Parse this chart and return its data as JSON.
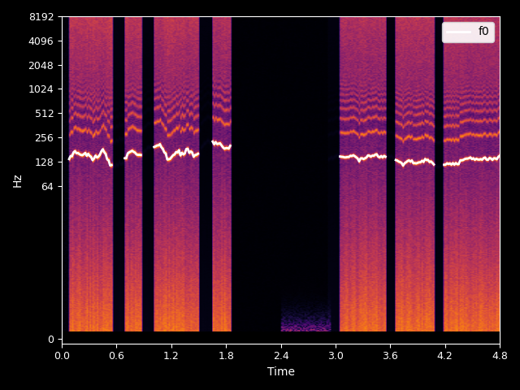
{
  "xlabel": "Time",
  "ylabel": "Hz",
  "xlim": [
    0,
    4.8
  ],
  "f_max": 8192,
  "yticks": [
    0,
    64,
    128,
    256,
    512,
    1024,
    2048,
    4096,
    8192
  ],
  "xticks": [
    0,
    0.6,
    1.2,
    1.8,
    2.4,
    3.0,
    3.6,
    4.2,
    4.8
  ],
  "colormap": "inferno",
  "bg_color": "#000000",
  "f0_color": "white",
  "f0_linewidth": 2.0,
  "legend_label": "f0",
  "t_max": 4.8,
  "n_t": 300,
  "n_f": 400,
  "figsize": [
    6.4,
    4.8
  ],
  "dpi": 100,
  "seg1_start": 0.08,
  "seg1_end": 1.85,
  "seg2_start": 2.92,
  "seg2_end": 4.8,
  "pause1_start": 0.55,
  "pause1_end": 0.68,
  "pause2_start": 0.88,
  "pause2_end": 1.0,
  "pause3_start": 1.5,
  "pause3_end": 1.65,
  "pause4_start": 2.92,
  "pause4_end": 3.05,
  "pause5_start": 3.55,
  "pause5_end": 3.65,
  "pause6_start": 4.08,
  "pause6_end": 4.18
}
